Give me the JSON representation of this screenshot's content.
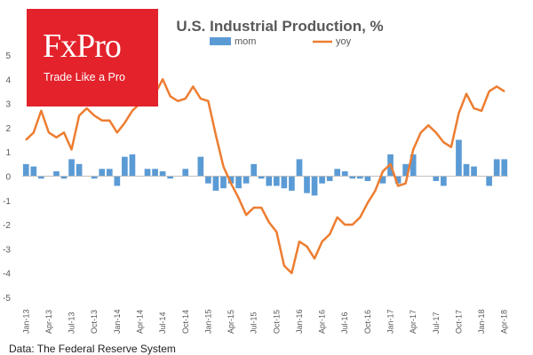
{
  "logo": {
    "main": "FxPro",
    "tagline": "Trade Like a Pro"
  },
  "source_note": "Data: The Federal Reserve System",
  "colors": {
    "mom": "#5b9bd5",
    "yoy": "#ed7d31",
    "logo_bg": "#e3222b"
  },
  "chart_data": {
    "type": "bar",
    "title": "U.S. Industrial Production, %",
    "xlabel": "",
    "ylabel": "",
    "ylim": [
      -5,
      5
    ],
    "yticks": [
      -5,
      -4,
      -3,
      -2,
      -1,
      0,
      1,
      2,
      3,
      4,
      5
    ],
    "grid": false,
    "legend_position": "top",
    "categories": [
      "Jan-13",
      "Feb-13",
      "Mar-13",
      "Apr-13",
      "May-13",
      "Jun-13",
      "Jul-13",
      "Aug-13",
      "Sep-13",
      "Oct-13",
      "Nov-13",
      "Dec-13",
      "Jan-14",
      "Feb-14",
      "Mar-14",
      "Apr-14",
      "May-14",
      "Jun-14",
      "Jul-14",
      "Aug-14",
      "Sep-14",
      "Oct-14",
      "Nov-14",
      "Dec-14",
      "Jan-15",
      "Feb-15",
      "Mar-15",
      "Apr-15",
      "May-15",
      "Jun-15",
      "Jul-15",
      "Aug-15",
      "Sep-15",
      "Oct-15",
      "Nov-15",
      "Dec-15",
      "Jan-16",
      "Feb-16",
      "Mar-16",
      "Apr-16",
      "May-16",
      "Jun-16",
      "Jul-16",
      "Aug-16",
      "Sep-16",
      "Oct-16",
      "Nov-16",
      "Dec-16",
      "Jan-17",
      "Feb-17",
      "Mar-17",
      "Apr-17",
      "May-17",
      "Jun-17",
      "Jul-17",
      "Aug-17",
      "Sep-17",
      "Oct-17",
      "Nov-17",
      "Dec-17",
      "Jan-18",
      "Feb-18",
      "Mar-18",
      "Apr-18"
    ],
    "tick_labels": [
      "Jan-13",
      "Apr-13",
      "Jul-13",
      "Oct-13",
      "Jan-14",
      "Apr-14",
      "Jul-14",
      "Oct-14",
      "Jan-15",
      "Apr-15",
      "Jul-15",
      "Oct-15",
      "Jan-16",
      "Apr-16",
      "Jul-16",
      "Oct-16",
      "Jan-17",
      "Apr-17",
      "Jul-17",
      "Oct-17",
      "Jan-18",
      "Apr-18"
    ],
    "series": [
      {
        "name": "mom",
        "type": "bar",
        "values": [
          0.5,
          0.4,
          -0.1,
          0.0,
          0.2,
          -0.1,
          0.7,
          0.5,
          0.0,
          -0.1,
          0.3,
          0.3,
          -0.4,
          0.8,
          0.9,
          0.0,
          0.3,
          0.3,
          0.2,
          -0.1,
          0.0,
          0.3,
          0.0,
          0.8,
          -0.3,
          -0.6,
          -0.5,
          -0.3,
          -0.5,
          -0.3,
          0.5,
          -0.1,
          -0.4,
          -0.4,
          -0.5,
          -0.6,
          0.7,
          -0.7,
          -0.8,
          -0.3,
          -0.2,
          0.3,
          0.2,
          -0.1,
          -0.1,
          -0.2,
          0.0,
          -0.3,
          0.9,
          -0.3,
          0.5,
          0.9,
          0.0,
          0.0,
          -0.2,
          -0.4,
          0.0,
          1.5,
          0.5,
          0.4,
          0.0,
          -0.4,
          0.7,
          0.7
        ]
      },
      {
        "name": "yoy",
        "type": "line",
        "values": [
          1.5,
          1.8,
          2.7,
          1.8,
          1.6,
          1.8,
          1.1,
          2.5,
          2.8,
          2.5,
          2.3,
          2.3,
          1.8,
          2.2,
          2.7,
          3.0,
          3.3,
          3.4,
          4.0,
          3.3,
          3.1,
          3.2,
          3.7,
          3.2,
          3.1,
          1.7,
          0.4,
          -0.3,
          -0.9,
          -1.6,
          -1.3,
          -1.3,
          -1.9,
          -2.3,
          -3.7,
          -4.0,
          -2.7,
          -2.9,
          -3.4,
          -2.7,
          -2.4,
          -1.7,
          -2.0,
          -2.0,
          -1.7,
          -1.1,
          -0.6,
          0.2,
          0.5,
          -0.4,
          -0.3,
          1.1,
          1.8,
          2.1,
          1.8,
          1.4,
          1.2,
          2.6,
          3.4,
          2.8,
          2.7,
          3.5,
          3.7,
          3.5
        ]
      }
    ]
  }
}
